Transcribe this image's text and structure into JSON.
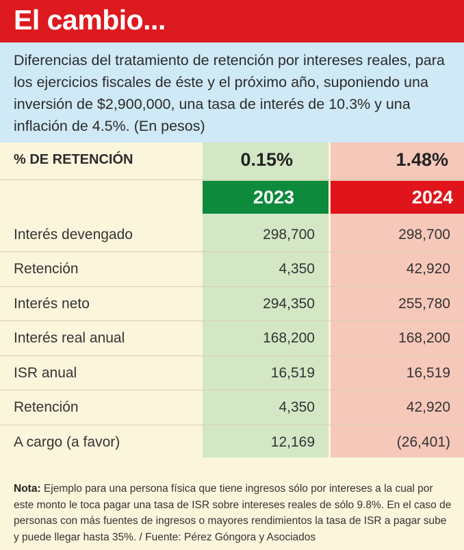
{
  "title": "El cambio...",
  "intro": "Diferencias del tratamiento de retención por intereses reales, para los ejercicios fiscales de éste y el próximo año, suponiendo una inversión de $2,900,000, una tasa de interés de 10.3% y una inflación de 4.5%. (En pesos)",
  "table": {
    "header_label": "% DE RETENCIÓN",
    "pct_2023": "0.15%",
    "pct_2024": "1.48%",
    "year_2023": "2023",
    "year_2024": "2024",
    "rows": [
      {
        "label": "Interés devengado",
        "v2023": "298,700",
        "v2024": "298,700"
      },
      {
        "label": "Retención",
        "v2023": "4,350",
        "v2024": "42,920"
      },
      {
        "label": "Interés neto",
        "v2023": "294,350",
        "v2024": "255,780"
      },
      {
        "label": "Interés real anual",
        "v2023": "168,200",
        "v2024": "168,200"
      },
      {
        "label": "ISR anual",
        "v2023": "16,519",
        "v2024": "16,519"
      },
      {
        "label": "Retención",
        "v2023": "4,350",
        "v2024": "42,920"
      },
      {
        "label": "A cargo (a favor)",
        "v2023": "12,169",
        "v2024": "(26,401)"
      }
    ]
  },
  "note": {
    "label": "Nota:",
    "text": " Ejemplo para una persona física que tiene ingresos sólo por intereses a la cual por este monto le toca pagar una tasa de ISR sobre intereses reales de sólo 9.8%. En el caso de personas con más fuentes de ingresos o mayores rendimientos la tasa de ISR a pagar sube y puede llegar hasta 35%. / Fuente: Pérez Góngora y Asociados"
  },
  "colors": {
    "title_red": "#dc1a1f",
    "intro_blue": "#cfe9f6",
    "green_col": "#d3e7c5",
    "red_col": "#f6c8ba",
    "green_year": "#0d8a3c",
    "red_year": "#e0151b"
  }
}
